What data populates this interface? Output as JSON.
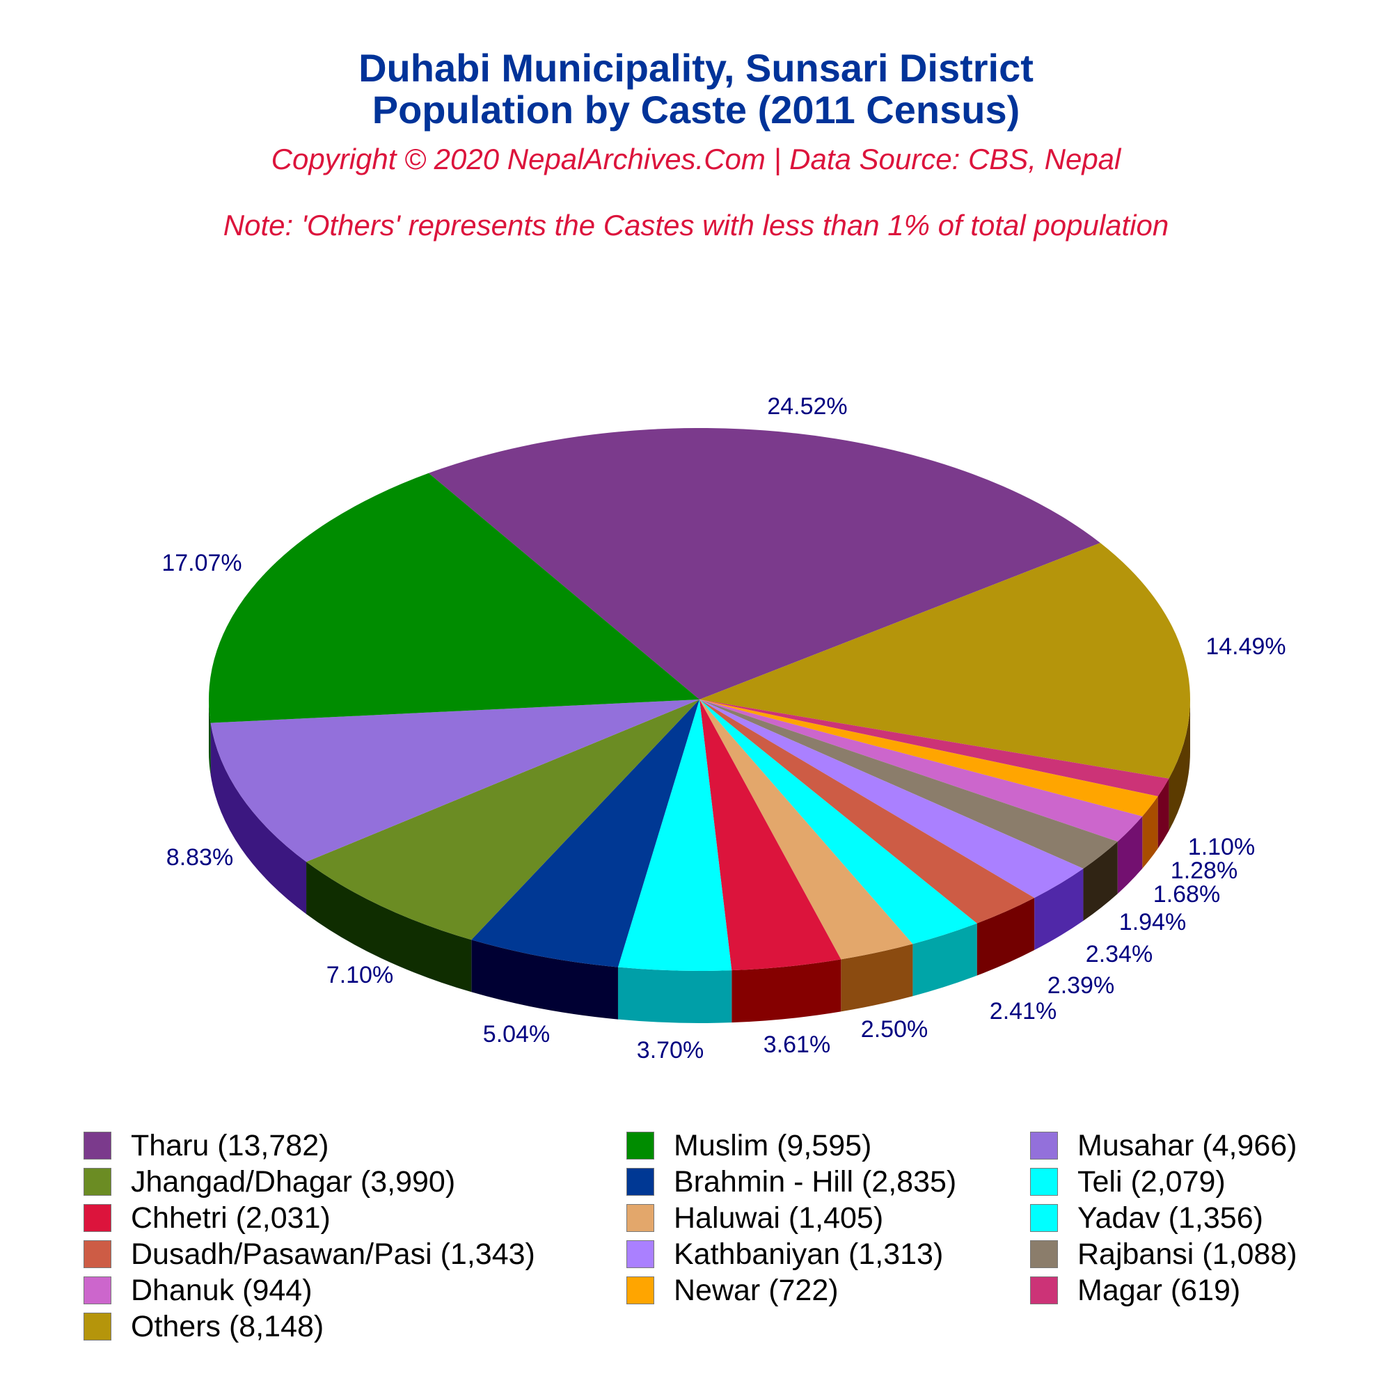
{
  "header": {
    "title_line1": "Duhabi Municipality, Sunsari District",
    "title_line2": "Population by Caste (2011 Census)",
    "copyright": "Copyright © 2020 NepalArchives.Com | Data Source: CBS, Nepal",
    "note": "Note: 'Others' represents the Castes with less than 1% of total population"
  },
  "colors": {
    "title": "#003399",
    "subtitle": "#dc143c",
    "pct_label": "#000080"
  },
  "chart_data": {
    "type": "pie",
    "title": "Duhabi Municipality, Sunsari District Population by Caste (2011 Census)",
    "subtitle": "Copyright © 2020 NepalArchives.Com | Data Source: CBS, Nepal",
    "annotation": "Note: 'Others' represents the Castes with less than 1% of total population",
    "style": "3d",
    "legend_position": "bottom",
    "slices": [
      {
        "label": "Tharu",
        "value": 13782,
        "percent": 24.52,
        "pct_label": "24.52%",
        "color": "#7b3a8c",
        "side": "#4a1f57"
      },
      {
        "label": "Others",
        "value": 8148,
        "percent": 14.49,
        "pct_label": "14.49%",
        "color": "#b5950b",
        "side": "#5c3b00"
      },
      {
        "label": "Magar",
        "value": 619,
        "percent": 1.1,
        "pct_label": "1.10%",
        "color": "#cc3377",
        "side": "#730020"
      },
      {
        "label": "Newar",
        "value": 722,
        "percent": 1.28,
        "pct_label": "1.28%",
        "color": "#ffa500",
        "side": "#a84d00"
      },
      {
        "label": "Dhanuk",
        "value": 944,
        "percent": 1.68,
        "pct_label": "1.68%",
        "color": "#cc66cc",
        "side": "#731070"
      },
      {
        "label": "Rajbansi",
        "value": 1088,
        "percent": 1.94,
        "pct_label": "1.94%",
        "color": "#8b7d6b",
        "side": "#302414"
      },
      {
        "label": "Kathbaniyan",
        "value": 1313,
        "percent": 2.34,
        "pct_label": "2.34%",
        "color": "#aa80ff",
        "side": "#5028a8"
      },
      {
        "label": "Dusadh/Pasawan/Pasi",
        "value": 1343,
        "percent": 2.39,
        "pct_label": "2.39%",
        "color": "#cd5c45",
        "side": "#730000"
      },
      {
        "label": "Yadav",
        "value": 1356,
        "percent": 2.41,
        "pct_label": "2.41%",
        "color": "#00ffff",
        "side": "#00a5a8"
      },
      {
        "label": "Haluwai",
        "value": 1405,
        "percent": 2.5,
        "pct_label": "2.50%",
        "color": "#e3a76b",
        "side": "#8b4b10"
      },
      {
        "label": "Chhetri",
        "value": 2031,
        "percent": 3.61,
        "pct_label": "3.61%",
        "color": "#dc143c",
        "side": "#850000"
      },
      {
        "label": "Teli",
        "value": 2079,
        "percent": 3.7,
        "pct_label": "3.70%",
        "color": "#00ffff",
        "side": "#009fa8"
      },
      {
        "label": "Brahmin - Hill",
        "value": 2835,
        "percent": 5.04,
        "pct_label": "5.04%",
        "color": "#003894",
        "side": "#000033"
      },
      {
        "label": "Jhangad/Dhagar",
        "value": 3990,
        "percent": 7.1,
        "pct_label": "7.10%",
        "color": "#6b8c23",
        "side": "#0f2d00"
      },
      {
        "label": "Musahar",
        "value": 4966,
        "percent": 8.83,
        "pct_label": "8.83%",
        "color": "#9370db",
        "side": "#3b1780"
      },
      {
        "label": "Muslim",
        "value": 9595,
        "percent": 17.07,
        "pct_label": "17.07%",
        "color": "#008c00",
        "side": "#004d00"
      }
    ]
  },
  "legend": {
    "items": [
      {
        "label": "Tharu (13,782)",
        "color": "#7b3a8c"
      },
      {
        "label": "Muslim (9,595)",
        "color": "#008c00"
      },
      {
        "label": "Musahar (4,966)",
        "color": "#9370db"
      },
      {
        "label": "Jhangad/Dhagar (3,990)",
        "color": "#6b8c23"
      },
      {
        "label": "Brahmin - Hill (2,835)",
        "color": "#003894"
      },
      {
        "label": "Teli (2,079)",
        "color": "#00ffff"
      },
      {
        "label": "Chhetri (2,031)",
        "color": "#dc143c"
      },
      {
        "label": "Haluwai (1,405)",
        "color": "#e3a76b"
      },
      {
        "label": "Yadav (1,356)",
        "color": "#00ffff"
      },
      {
        "label": "Dusadh/Pasawan/Pasi (1,343)",
        "color": "#cd5c45"
      },
      {
        "label": "Kathbaniyan (1,313)",
        "color": "#aa80ff"
      },
      {
        "label": "Rajbansi (1,088)",
        "color": "#8b7d6b"
      },
      {
        "label": "Dhanuk (944)",
        "color": "#cc66cc"
      },
      {
        "label": "Newar (722)",
        "color": "#ffa500"
      },
      {
        "label": "Magar (619)",
        "color": "#cc3377"
      },
      {
        "label": "Others (8,148)",
        "color": "#b5950b"
      }
    ]
  }
}
